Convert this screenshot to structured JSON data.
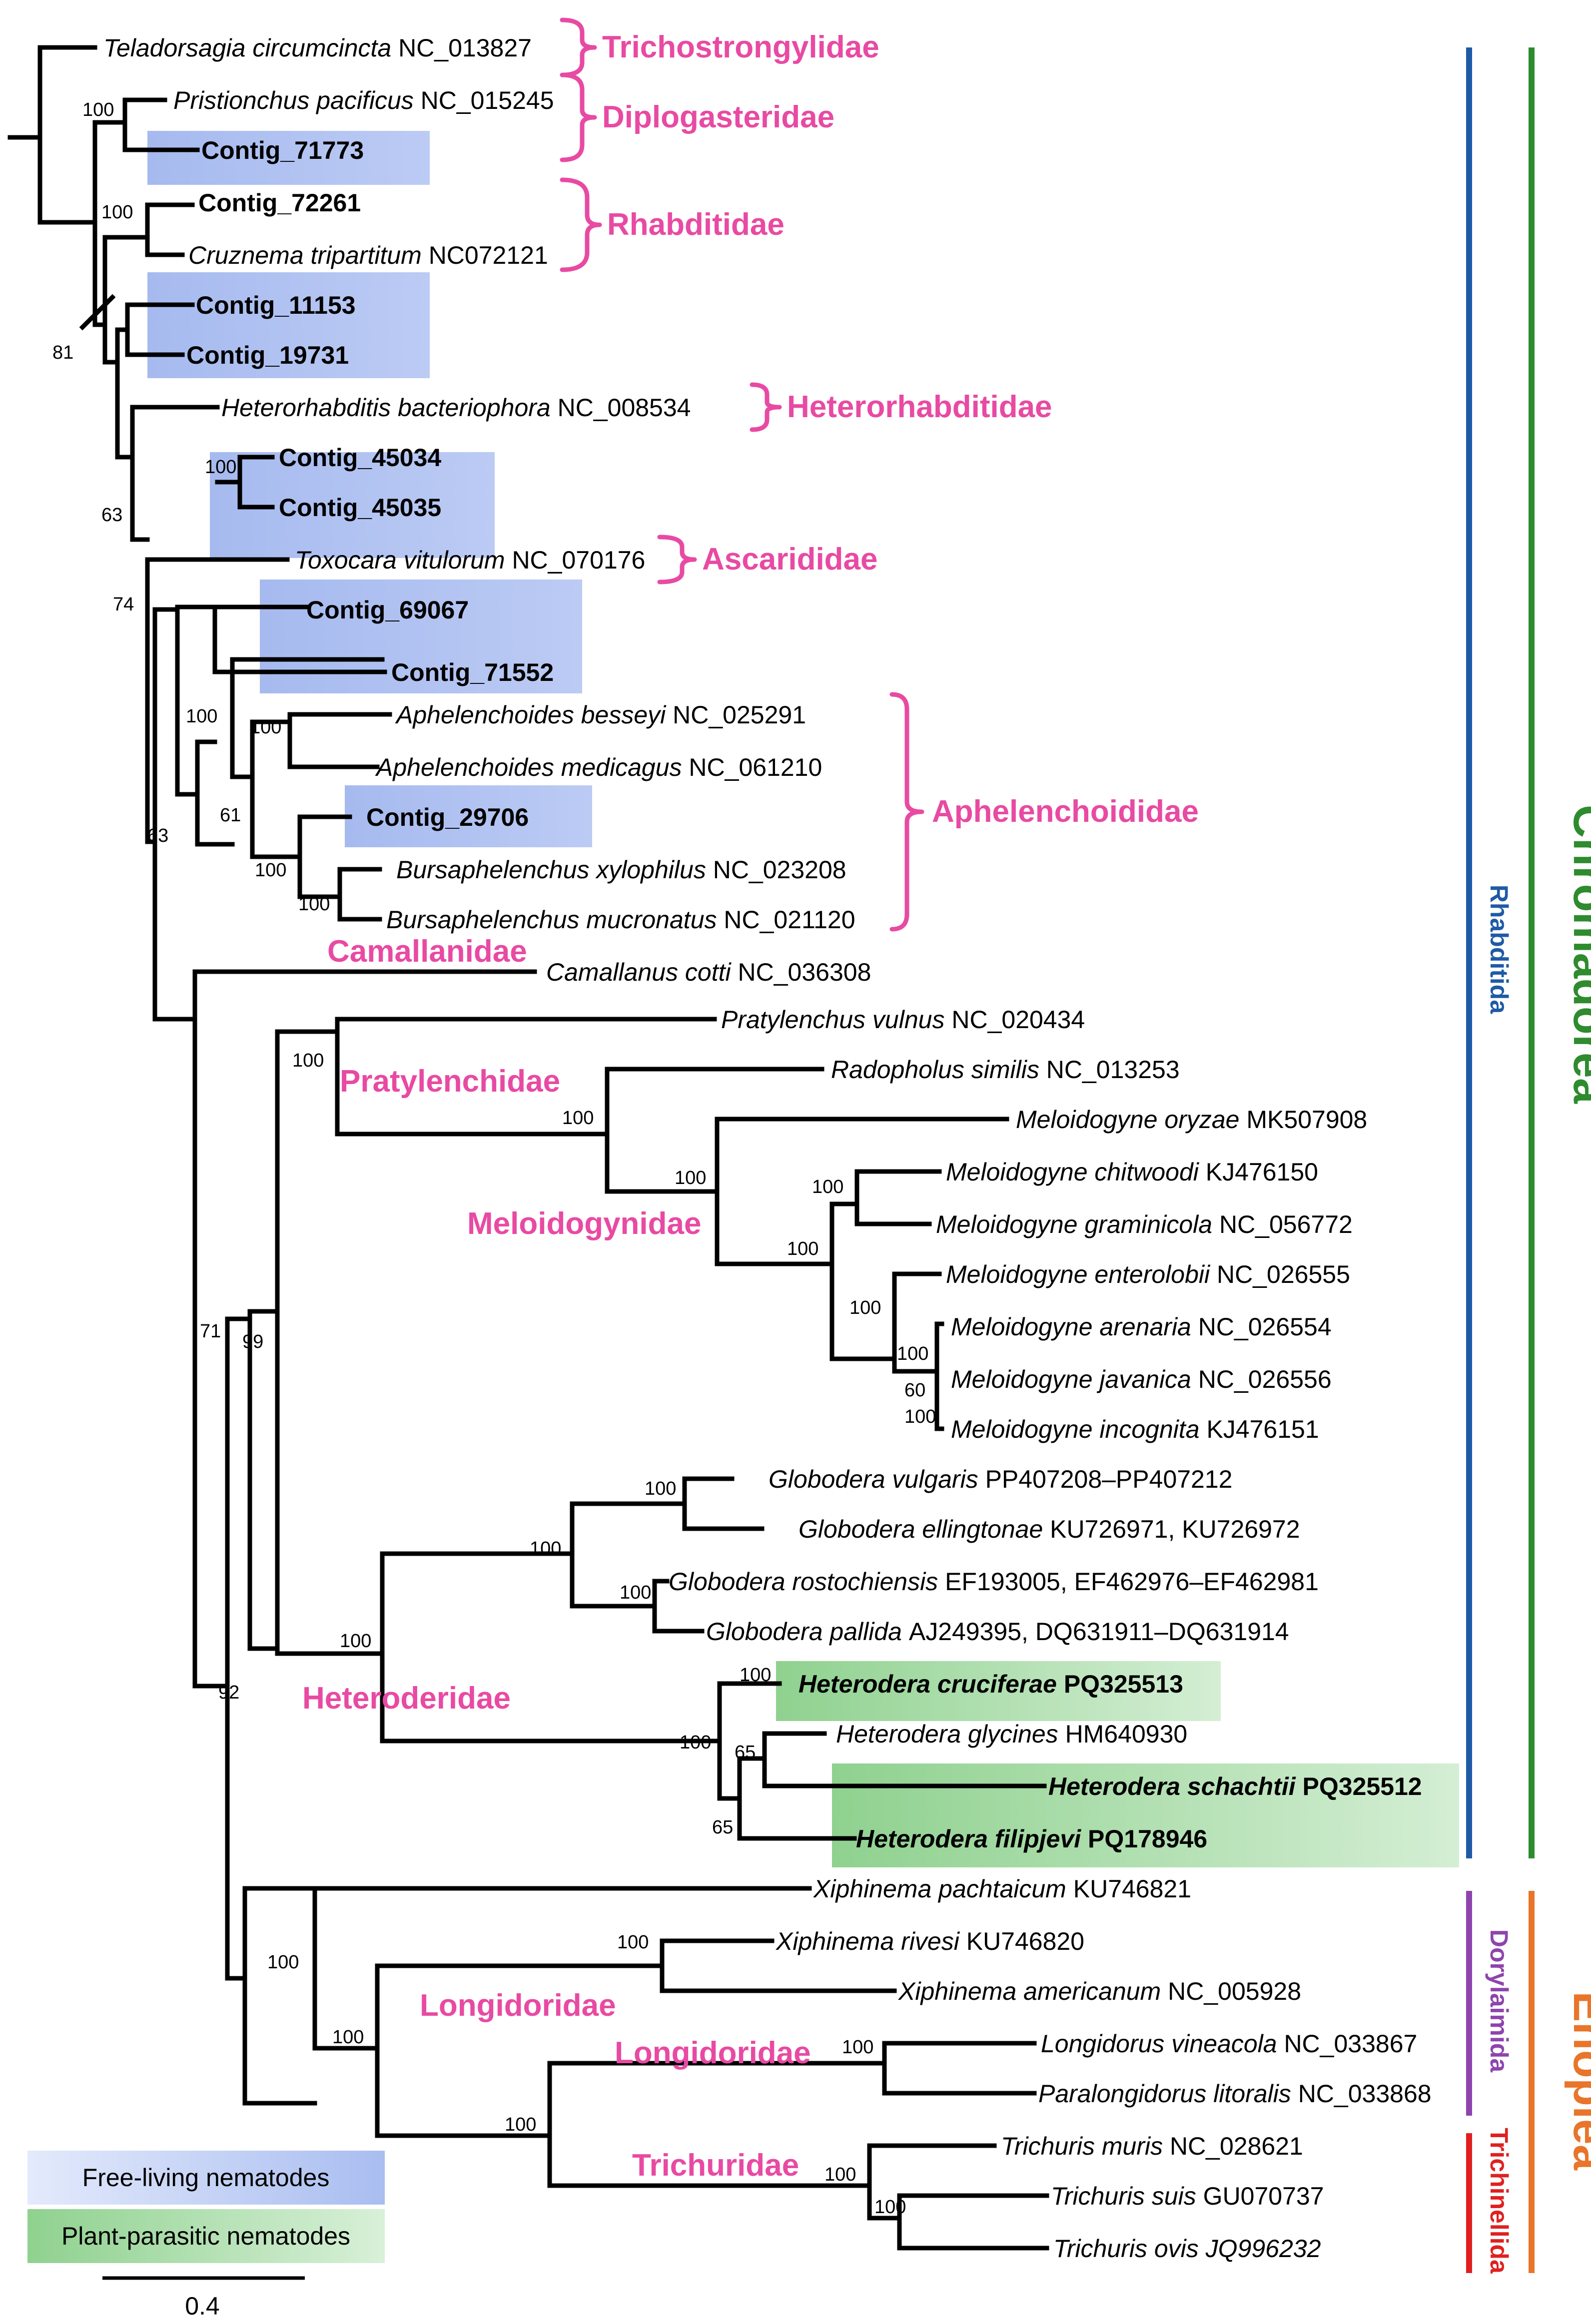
{
  "tips": [
    {
      "genus": "Teladorsagia circumcincta",
      "acc": "NC_013827",
      "bold": false
    },
    {
      "genus": "Pristionchus pacificus",
      "acc": "NC_015245",
      "bold": false
    },
    {
      "genus": "",
      "acc": "Contig_71773",
      "bold": true
    },
    {
      "genus": "",
      "acc": "Contig_72261",
      "bold": true
    },
    {
      "genus": "Cruznema tripartitum",
      "acc": "NC072121",
      "bold": false
    },
    {
      "genus": "",
      "acc": "Contig_11153",
      "bold": true
    },
    {
      "genus": "",
      "acc": "Contig_19731",
      "bold": true
    },
    {
      "genus": "Heterorhabditis bacteriophora",
      "acc": "NC_008534",
      "bold": false
    },
    {
      "genus": "",
      "acc": "Contig_45034",
      "bold": true
    },
    {
      "genus": "",
      "acc": "Contig_45035",
      "bold": true
    },
    {
      "genus": "Toxocara vitulorum",
      "acc": "NC_070176",
      "bold": false
    },
    {
      "genus": "",
      "acc": "Contig_69067",
      "bold": true
    },
    {
      "genus": "",
      "acc": "Contig_71552",
      "bold": true
    },
    {
      "genus": "Aphelenchoides besseyi",
      "acc": "NC_025291",
      "bold": false
    },
    {
      "genus": "Aphelenchoides medicagus",
      "acc": "NC_061210",
      "bold": false
    },
    {
      "genus": "",
      "acc": "Contig_29706",
      "bold": true
    },
    {
      "genus": "Bursaphelenchus xylophilus",
      "acc": " NC_023208",
      "bold": false
    },
    {
      "genus": "Bursaphelenchus mucronatus",
      "acc": "NC_021120",
      "bold": false
    },
    {
      "genus": "Camallanus cotti",
      "acc": "NC_036308",
      "bold": false
    },
    {
      "genus": "Pratylenchus vulnus",
      "acc": "NC_020434",
      "bold": false
    },
    {
      "genus": "Radopholus similis",
      "acc": "NC_013253",
      "bold": false
    },
    {
      "genus": "Meloidogyne oryzae",
      "acc": "MK507908",
      "bold": false
    },
    {
      "genus": "Meloidogyne chitwoodi",
      "acc": "KJ476150",
      "bold": false
    },
    {
      "genus": "Meloidogyne graminicola",
      "acc": "NC_056772",
      "bold": false
    },
    {
      "genus": "Meloidogyne enterolobii",
      "acc": "NC_026555",
      "bold": false
    },
    {
      "genus": "Meloidogyne arenaria",
      "acc": "NC_026554",
      "bold": false
    },
    {
      "genus": "Meloidogyne javanica",
      "acc": "NC_026556",
      "bold": false
    },
    {
      "genus": "Meloidogyne incognita",
      "acc": "KJ476151",
      "bold": false
    },
    {
      "genus": "Globodera vulgaris",
      "acc": "PP407208–PP407212",
      "bold": false
    },
    {
      "genus": "Globodera ellingtonae",
      "acc": "KU726971, KU726972",
      "bold": false
    },
    {
      "genus": "Globodera rostochiensis",
      "acc": "EF193005, EF462976–EF462981",
      "bold": false
    },
    {
      "genus": "Globodera pallida",
      "acc": "AJ249395, DQ631911–DQ631914",
      "bold": false
    },
    {
      "genus": "Heterodera cruciferae",
      "acc": "PQ325513",
      "bold": true
    },
    {
      "genus": "Heterodera glycines",
      "acc": "HM640930",
      "bold": false
    },
    {
      "genus": "Heterodera schachtii",
      "acc": "PQ325512",
      "bold": true
    },
    {
      "genus": "Heterodera filipjevi",
      "acc": "PQ178946",
      "bold": true
    },
    {
      "genus": "Xiphinema pachtaicum",
      "acc": "KU746821",
      "bold": false
    },
    {
      "genus": "Xiphinema rivesi",
      "acc": "KU746820",
      "bold": false
    },
    {
      "genus": "Xiphinema americanum",
      "acc": "NC_005928",
      "bold": false
    },
    {
      "genus": "Longidorus vineacola",
      "acc": "NC_033867",
      "bold": false
    },
    {
      "genus": "Paralongidorus litoralis",
      "acc": "NC_033868",
      "bold": false
    },
    {
      "genus": "Trichuris muris",
      "acc": "NC_028621",
      "bold": false
    },
    {
      "genus": "Trichuris suis",
      "acc": "GU070737",
      "bold": false
    },
    {
      "genus": "Trichuris ovis",
      "acc": "JQ996232",
      "bold": false,
      "acc_italic": true
    }
  ],
  "support": [
    "100",
    "100",
    "81",
    "100",
    "63",
    "74",
    "100",
    "100",
    "63",
    "61",
    "100",
    "100",
    "100",
    "71",
    "99",
    "100",
    "100",
    "100",
    "100",
    "100",
    "100",
    "100",
    "60",
    "100",
    "100",
    "100",
    "100",
    "92",
    "100",
    "65",
    "65",
    "100",
    "100",
    "100",
    "100",
    "100",
    "100",
    "100",
    "100"
  ],
  "families": [
    "Trichostrongylidae",
    "Diplogasteridae",
    "Rhabditidae",
    "Heterorhabditidae",
    "Ascarididae",
    "Aphelenchoididae",
    "Camallanidae",
    "Pratylenchidae",
    "Meloidogynidae",
    "Heteroderidae",
    "Longidoridae",
    "Longidoridae",
    "Trichuridae"
  ],
  "clades": {
    "class1": "Chromadorea",
    "class2": "Enoplea",
    "order1": "Rhabditida",
    "order2": "Dorylaimida",
    "order3": "Trichinellida"
  },
  "legend": {
    "free": "Free-living nematodes",
    "plant": "Plant-parasitic nematodes"
  },
  "scale_label": "0.4",
  "scale_value": 0.4,
  "colors": {
    "family": "#e84aa3",
    "chromadorea": "#2e8b2e",
    "rhabditida": "#1f5aa6",
    "enoplea": "#e8752a",
    "dorylaimida": "#8e44ad",
    "trichinellida": "#e02020",
    "free_living": "#a9bdf0",
    "plant_parasitic": "#9ad49a"
  }
}
